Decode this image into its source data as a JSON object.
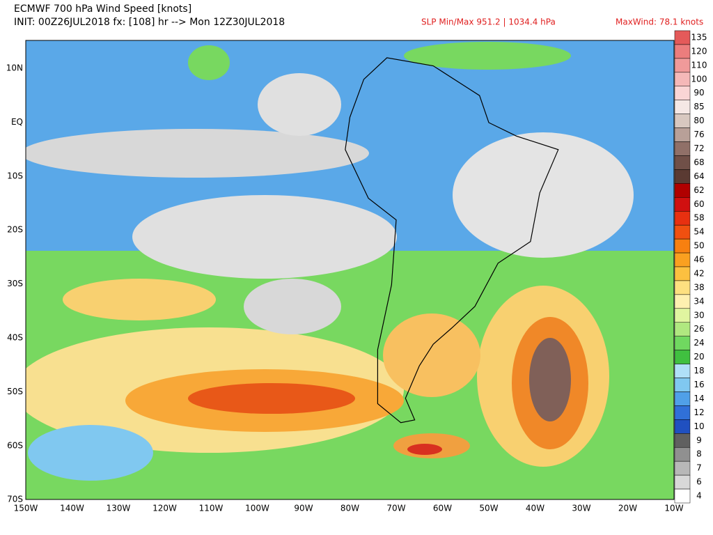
{
  "header": {
    "title": "ECMWF 700 hPa Wind Speed [knots]",
    "init": "INIT: 00Z26JUL2018 fx: [108] hr --> Mon 12Z30JUL2018",
    "slp": "SLP Min/Max 951.2 | 1034.4 hPa",
    "max_wind": "MaxWind: 78.1 knots"
  },
  "map": {
    "lat_labels": [
      "10N",
      "EQ",
      "10S",
      "20S",
      "30S",
      "40S",
      "50S",
      "60S",
      "70S"
    ],
    "lon_labels": [
      "150W",
      "140W",
      "130W",
      "120W",
      "110W",
      "100W",
      "90W",
      "80W",
      "70W",
      "60W",
      "50W",
      "40W",
      "30W",
      "20W",
      "10W"
    ]
  },
  "colorbar": {
    "labels": [
      135,
      120,
      110,
      100,
      90,
      85,
      80,
      76,
      72,
      68,
      64,
      62,
      60,
      58,
      54,
      50,
      46,
      42,
      38,
      34,
      30,
      26,
      24,
      20,
      18,
      16,
      14,
      12,
      10,
      9,
      8,
      7,
      6,
      4
    ],
    "colors": [
      "#e45a5a",
      "#ec7d7d",
      "#f09a9a",
      "#f5b8b8",
      "#fad5d5",
      "#f5e8e5",
      "#d8c8c0",
      "#b8a098",
      "#907068",
      "#705048",
      "#5a3a32",
      "#b00000",
      "#d01010",
      "#e83010",
      "#f05010",
      "#f88010",
      "#faa020",
      "#fcc040",
      "#fde080",
      "#fef0b0",
      "#e0f5a0",
      "#b0e880",
      "#70d860",
      "#40c040",
      "#b0e0f8",
      "#80c8f0",
      "#50a0e8",
      "#3070d8",
      "#2050c0",
      "#606060",
      "#909090",
      "#b8b8b8",
      "#d8d8d8",
      "#ffffff"
    ]
  }
}
